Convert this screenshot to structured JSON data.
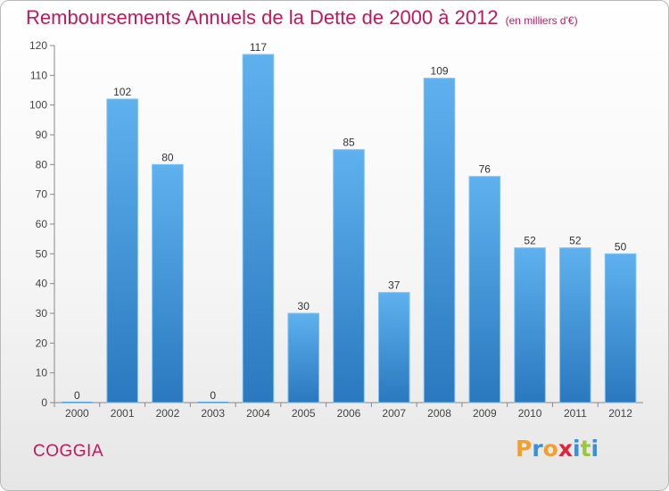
{
  "header": {
    "title": "Remboursements Annuels de la Dette de 2000 à 2012",
    "subtitle": "(en milliers d'€)"
  },
  "footer": {
    "commune": "COGGIA",
    "brand_letters": [
      {
        "ch": "P",
        "color": "#f0a030"
      },
      {
        "ch": "r",
        "color": "#3a8fd6"
      },
      {
        "ch": "o",
        "color": "#f0a030"
      },
      {
        "ch": "x",
        "color": "#e2233b"
      },
      {
        "ch": "i",
        "color": "#3a8fd6"
      },
      {
        "ch": "t",
        "color": "#9bc73a"
      },
      {
        "ch": "i",
        "color": "#3a8fd6"
      }
    ]
  },
  "chart_data": {
    "type": "bar",
    "title": "Remboursements Annuels de la Dette de 2000 à 2012",
    "categories": [
      "2000",
      "2001",
      "2002",
      "2003",
      "2004",
      "2005",
      "2006",
      "2007",
      "2008",
      "2009",
      "2010",
      "2011",
      "2012"
    ],
    "values": [
      0,
      102,
      80,
      0,
      117,
      30,
      85,
      37,
      109,
      76,
      52,
      52,
      50
    ],
    "data_labels": [
      "0",
      "102",
      "80",
      "0",
      "117",
      "30",
      "85",
      "37",
      "109",
      "76",
      "52",
      "52",
      "50"
    ],
    "ylim": [
      0,
      120
    ],
    "yticks": [
      0,
      10,
      20,
      30,
      40,
      50,
      60,
      70,
      80,
      90,
      100,
      110,
      120
    ],
    "grid": false,
    "bar_color": "#4a9be0"
  }
}
